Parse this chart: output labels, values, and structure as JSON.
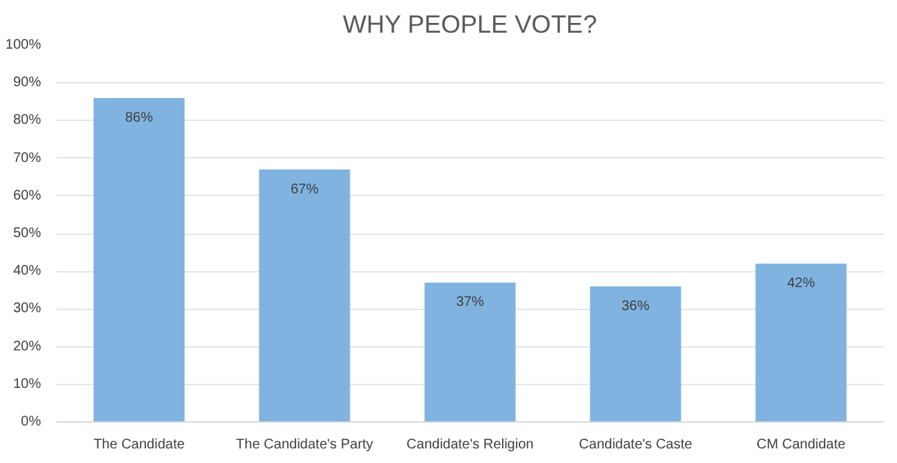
{
  "chart_data": {
    "type": "bar",
    "title": "WHY PEOPLE VOTE?",
    "categories": [
      "The Candidate",
      "The Candidate's Party",
      "Candidate's Religion",
      "Candidate's Caste",
      "CM Candidate"
    ],
    "values": [
      86,
      67,
      37,
      36,
      42
    ],
    "value_labels": [
      "86%",
      "67%",
      "37%",
      "36%",
      "42%"
    ],
    "color": "#80b3e0",
    "ylim": [
      0,
      100
    ],
    "yticks": [
      {
        "value": 0,
        "label": "0%"
      },
      {
        "value": 10,
        "label": "10%"
      },
      {
        "value": 20,
        "label": "20%"
      },
      {
        "value": 30,
        "label": "30%"
      },
      {
        "value": 40,
        "label": "40%"
      },
      {
        "value": 50,
        "label": "50%"
      },
      {
        "value": 60,
        "label": "60%"
      },
      {
        "value": 70,
        "label": "70%"
      },
      {
        "value": 80,
        "label": "80%"
      },
      {
        "value": 90,
        "label": "90%"
      },
      {
        "value": 100,
        "label": "100%"
      }
    ],
    "grid": "y"
  }
}
